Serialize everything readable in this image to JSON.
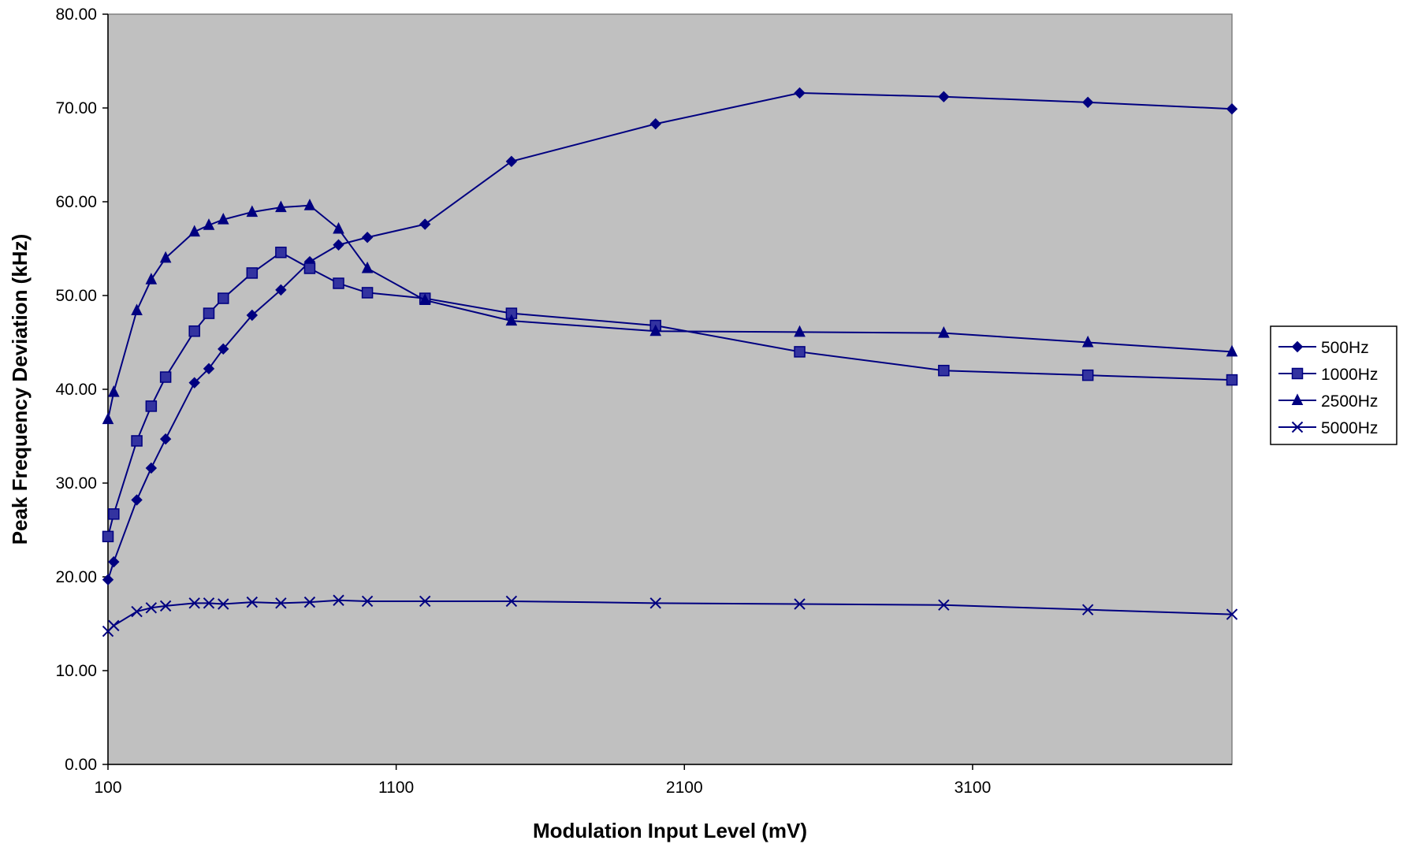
{
  "chart_data": {
    "type": "line",
    "title": "",
    "xlabel": "Modulation Input Level (mV)",
    "ylabel": "Peak Frequency Deviation (kHz)",
    "xlim": [
      100,
      4000
    ],
    "ylim": [
      0,
      80
    ],
    "x_ticks": [
      100,
      1100,
      2100,
      3100
    ],
    "x_tick_labels": [
      "100",
      "1100",
      "2100",
      "3100"
    ],
    "y_ticks": [
      0,
      10,
      20,
      30,
      40,
      50,
      60,
      70,
      80
    ],
    "y_tick_labels": [
      "0.00",
      "10.00",
      "20.00",
      "30.00",
      "40.00",
      "50.00",
      "60.00",
      "70.00",
      "80.00"
    ],
    "grid": false,
    "legend_position": "right",
    "colors": {
      "plot_background": "#c0c0c0",
      "series_line": "#000080",
      "marker_fill": "#3333a0"
    },
    "x": [
      100,
      120,
      200,
      250,
      300,
      400,
      450,
      500,
      600,
      700,
      800,
      900,
      1000,
      1200,
      1500,
      2000,
      2500,
      3000,
      3500,
      4000
    ],
    "series": [
      {
        "name": "500Hz",
        "marker": "diamond",
        "values": [
          19.7,
          21.6,
          28.2,
          31.6,
          34.7,
          40.7,
          42.2,
          44.3,
          47.9,
          50.6,
          53.6,
          55.4,
          56.2,
          57.6,
          64.3,
          68.3,
          71.6,
          71.2,
          70.6,
          69.9
        ]
      },
      {
        "name": "1000Hz",
        "marker": "square",
        "values": [
          24.3,
          26.7,
          34.5,
          38.2,
          41.3,
          46.2,
          48.1,
          49.7,
          52.4,
          54.6,
          52.9,
          51.3,
          50.3,
          49.7,
          48.1,
          46.8,
          44.0,
          42.0,
          41.5,
          41.0
        ]
      },
      {
        "name": "2500Hz",
        "marker": "triangle",
        "values": [
          36.8,
          39.7,
          48.4,
          51.7,
          54.0,
          56.8,
          57.5,
          58.1,
          58.9,
          59.4,
          59.6,
          57.1,
          52.9,
          49.5,
          47.3,
          46.2,
          46.1,
          46.0,
          45.0,
          44.0
        ]
      },
      {
        "name": "5000Hz",
        "marker": "x",
        "values": [
          14.2,
          14.8,
          16.3,
          16.7,
          16.9,
          17.2,
          17.2,
          17.1,
          17.3,
          17.2,
          17.3,
          17.5,
          17.4,
          17.4,
          17.4,
          17.2,
          17.1,
          17.0,
          16.5,
          16.0
        ]
      }
    ]
  }
}
